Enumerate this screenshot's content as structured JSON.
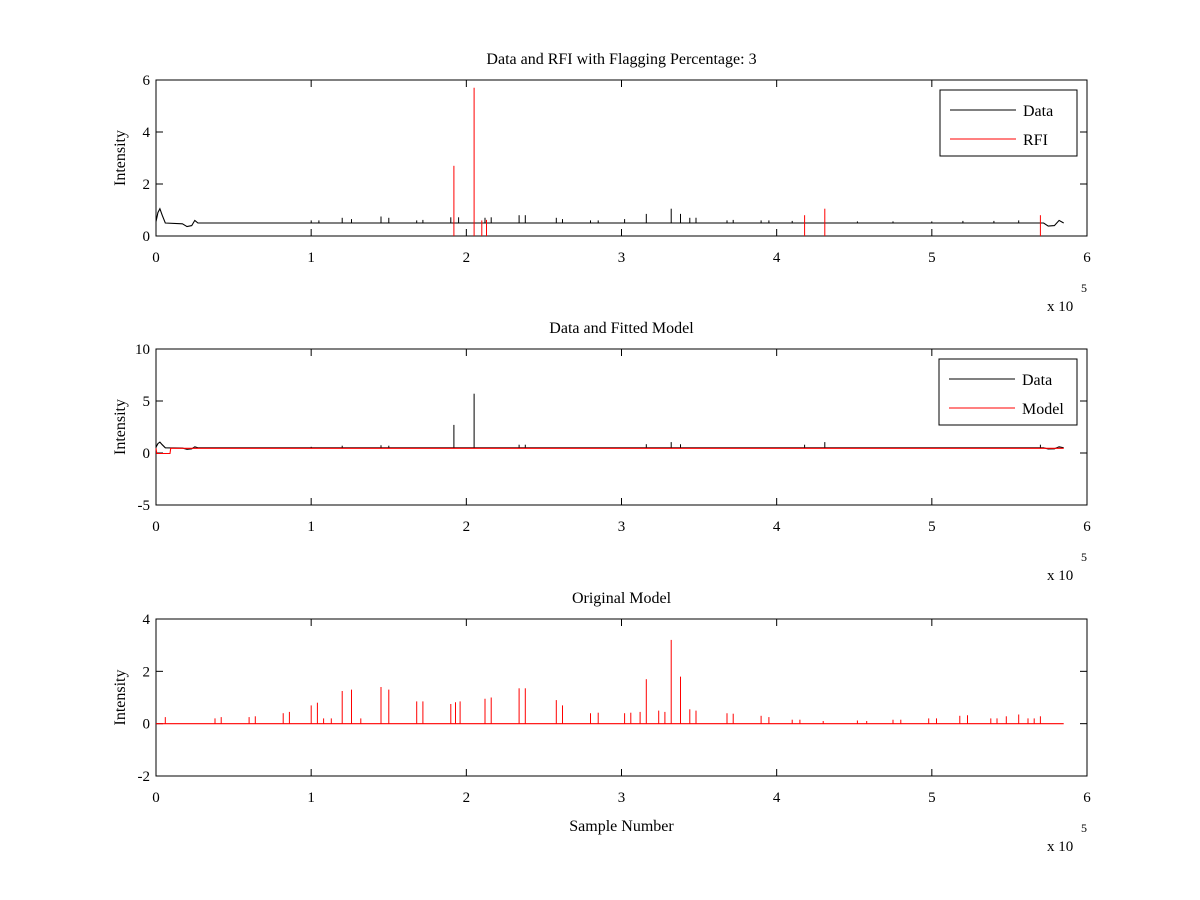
{
  "chart_data": [
    {
      "type": "line",
      "title": "Data and RFI with Flagging Percentage: 3",
      "xlabel": "",
      "ylabel": "Intensity",
      "xlim": [
        0,
        600000
      ],
      "ylim": [
        0,
        6
      ],
      "xticks": [
        0,
        1,
        2,
        3,
        4,
        5,
        6
      ],
      "yticks": [
        0,
        2,
        4,
        6
      ],
      "x_exponent_label": "x 10",
      "x_exponent": "5",
      "grid": false,
      "legend_position": "top-right",
      "series": [
        {
          "name": "Data",
          "color": "#000000",
          "baseline": 0.5,
          "edges": [
            {
              "x": 0,
              "y": 0.55
            },
            {
              "x": 1200,
              "y": 0.9
            },
            {
              "x": 2500,
              "y": 1.05
            },
            {
              "x": 4000,
              "y": 0.8
            },
            {
              "x": 6000,
              "y": 0.5
            },
            {
              "x": 17000,
              "y": 0.47
            },
            {
              "x": 20000,
              "y": 0.36
            },
            {
              "x": 23000,
              "y": 0.4
            },
            {
              "x": 25000,
              "y": 0.6
            },
            {
              "x": 27000,
              "y": 0.5
            },
            {
              "x": 572000,
              "y": 0.5
            },
            {
              "x": 575000,
              "y": 0.38
            },
            {
              "x": 579000,
              "y": 0.4
            },
            {
              "x": 582000,
              "y": 0.6
            },
            {
              "x": 585000,
              "y": 0.5
            }
          ],
          "spikes": [
            [
              100000,
              0.6
            ],
            [
              105000,
              0.6
            ],
            [
              120000,
              0.7
            ],
            [
              126000,
              0.65
            ],
            [
              145000,
              0.75
            ],
            [
              150000,
              0.7
            ],
            [
              168000,
              0.6
            ],
            [
              172000,
              0.62
            ],
            [
              190000,
              0.72
            ],
            [
              195000,
              0.72
            ],
            [
              212000,
              0.7
            ],
            [
              216000,
              0.72
            ],
            [
              234000,
              0.8
            ],
            [
              238000,
              0.8
            ],
            [
              258000,
              0.7
            ],
            [
              262000,
              0.65
            ],
            [
              280000,
              0.6
            ],
            [
              285000,
              0.6
            ],
            [
              302000,
              0.65
            ],
            [
              316000,
              0.85
            ],
            [
              332000,
              1.05
            ],
            [
              338000,
              0.85
            ],
            [
              344000,
              0.7
            ],
            [
              348000,
              0.7
            ],
            [
              368000,
              0.6
            ],
            [
              372000,
              0.62
            ],
            [
              390000,
              0.6
            ],
            [
              395000,
              0.6
            ],
            [
              410000,
              0.58
            ],
            [
              452000,
              0.56
            ],
            [
              475000,
              0.56
            ],
            [
              500000,
              0.56
            ],
            [
              520000,
              0.58
            ],
            [
              540000,
              0.58
            ],
            [
              556000,
              0.6
            ]
          ]
        },
        {
          "name": "RFI",
          "color": "#ff0000",
          "spikes": [
            [
              192000,
              2.7
            ],
            [
              205000,
              5.7
            ],
            [
              210000,
              0.6
            ],
            [
              213000,
              0.62
            ],
            [
              418000,
              0.8
            ],
            [
              431000,
              1.05
            ],
            [
              570000,
              0.8
            ]
          ]
        }
      ]
    },
    {
      "type": "line",
      "title": "Data and Fitted Model",
      "xlabel": "",
      "ylabel": "Intensity",
      "xlim": [
        0,
        600000
      ],
      "ylim": [
        -5,
        10
      ],
      "xticks": [
        0,
        1,
        2,
        3,
        4,
        5,
        6
      ],
      "yticks": [
        -5,
        0,
        5,
        10
      ],
      "x_exponent_label": "x 10",
      "x_exponent": "5",
      "grid": false,
      "legend_position": "top-right",
      "series": [
        {
          "name": "Data",
          "color": "#000000",
          "baseline": 0.5,
          "edges": [
            {
              "x": 0,
              "y": 0.55
            },
            {
              "x": 1200,
              "y": 0.9
            },
            {
              "x": 2500,
              "y": 1.05
            },
            {
              "x": 4000,
              "y": 0.8
            },
            {
              "x": 6000,
              "y": 0.5
            },
            {
              "x": 17000,
              "y": 0.47
            },
            {
              "x": 20000,
              "y": 0.36
            },
            {
              "x": 23000,
              "y": 0.4
            },
            {
              "x": 25000,
              "y": 0.6
            },
            {
              "x": 27000,
              "y": 0.5
            },
            {
              "x": 572000,
              "y": 0.5
            },
            {
              "x": 575000,
              "y": 0.38
            },
            {
              "x": 579000,
              "y": 0.4
            },
            {
              "x": 582000,
              "y": 0.6
            },
            {
              "x": 585000,
              "y": 0.5
            }
          ],
          "spikes": [
            [
              100000,
              0.6
            ],
            [
              120000,
              0.7
            ],
            [
              145000,
              0.75
            ],
            [
              150000,
              0.7
            ],
            [
              192000,
              2.7
            ],
            [
              205000,
              5.7
            ],
            [
              234000,
              0.8
            ],
            [
              238000,
              0.8
            ],
            [
              316000,
              0.85
            ],
            [
              332000,
              1.05
            ],
            [
              338000,
              0.85
            ],
            [
              418000,
              0.8
            ],
            [
              431000,
              1.05
            ],
            [
              570000,
              0.8
            ]
          ]
        },
        {
          "name": "Model",
          "color": "#ff0000",
          "baseline": 0.45,
          "edges": [
            {
              "x": 0,
              "y": 0.45
            },
            {
              "x": 500,
              "y": -0.05
            },
            {
              "x": 9000,
              "y": -0.05
            },
            {
              "x": 9500,
              "y": 0.45
            },
            {
              "x": 585000,
              "y": 0.45
            }
          ],
          "spikes": []
        }
      ]
    },
    {
      "type": "line",
      "title": "Original Model",
      "xlabel": "Sample Number",
      "ylabel": "Intensity",
      "xlim": [
        0,
        600000
      ],
      "ylim": [
        -2,
        4
      ],
      "xticks": [
        0,
        1,
        2,
        3,
        4,
        5,
        6
      ],
      "yticks": [
        -2,
        0,
        2,
        4
      ],
      "x_exponent_label": "x 10",
      "x_exponent": "5",
      "grid": false,
      "series": [
        {
          "color": "#ff0000",
          "baseline": 0,
          "edges": [
            {
              "x": 0,
              "y": 0
            },
            {
              "x": 585000,
              "y": 0
            }
          ],
          "spikes": [
            [
              6000,
              0.25
            ],
            [
              38000,
              0.2
            ],
            [
              42000,
              0.25
            ],
            [
              60000,
              0.25
            ],
            [
              64000,
              0.28
            ],
            [
              82000,
              0.4
            ],
            [
              86000,
              0.45
            ],
            [
              100000,
              0.7
            ],
            [
              104000,
              0.8
            ],
            [
              108000,
              0.2
            ],
            [
              113000,
              0.2
            ],
            [
              120000,
              1.25
            ],
            [
              126000,
              1.3
            ],
            [
              132000,
              0.2
            ],
            [
              145000,
              1.4
            ],
            [
              150000,
              1.3
            ],
            [
              168000,
              0.85
            ],
            [
              172000,
              0.85
            ],
            [
              190000,
              0.75
            ],
            [
              193000,
              0.82
            ],
            [
              196000,
              0.85
            ],
            [
              212000,
              0.95
            ],
            [
              216000,
              1.0
            ],
            [
              234000,
              1.35
            ],
            [
              238000,
              1.35
            ],
            [
              258000,
              0.9
            ],
            [
              262000,
              0.7
            ],
            [
              280000,
              0.4
            ],
            [
              285000,
              0.42
            ],
            [
              302000,
              0.4
            ],
            [
              306000,
              0.42
            ],
            [
              312000,
              0.45
            ],
            [
              316000,
              1.7
            ],
            [
              324000,
              0.5
            ],
            [
              328000,
              0.45
            ],
            [
              332000,
              3.2
            ],
            [
              338000,
              1.8
            ],
            [
              344000,
              0.55
            ],
            [
              348000,
              0.5
            ],
            [
              368000,
              0.4
            ],
            [
              372000,
              0.38
            ],
            [
              390000,
              0.3
            ],
            [
              395000,
              0.25
            ],
            [
              410000,
              0.15
            ],
            [
              415000,
              0.15
            ],
            [
              430000,
              0.1
            ],
            [
              452000,
              0.12
            ],
            [
              458000,
              0.1
            ],
            [
              475000,
              0.15
            ],
            [
              480000,
              0.15
            ],
            [
              498000,
              0.2
            ],
            [
              503000,
              0.2
            ],
            [
              518000,
              0.3
            ],
            [
              523000,
              0.32
            ],
            [
              538000,
              0.2
            ],
            [
              542000,
              0.2
            ],
            [
              548000,
              0.28
            ],
            [
              556000,
              0.35
            ],
            [
              562000,
              0.2
            ],
            [
              566000,
              0.2
            ],
            [
              570000,
              0.28
            ]
          ]
        }
      ]
    }
  ]
}
